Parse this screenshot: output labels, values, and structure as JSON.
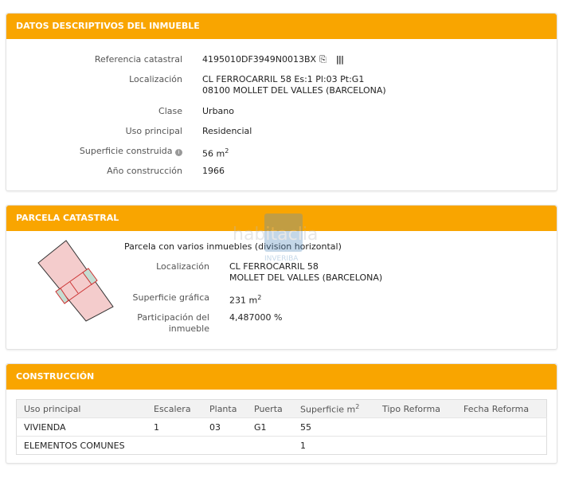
{
  "datos": {
    "title": "DATOS DESCRIPTIVOS DEL INMUEBLE",
    "rows": [
      {
        "label": "Referencia catastral",
        "value": "4195010DF3949N0013BX"
      },
      {
        "label": "Localización",
        "value": "CL FERROCARRIL 58 Es:1 Pl:03 Pt:G1",
        "value2": "08100 MOLLET DEL VALLES (BARCELONA)"
      },
      {
        "label": "Clase",
        "value": "Urbano"
      },
      {
        "label": "Uso principal",
        "value": "Residencial"
      },
      {
        "label": "Superficie construida",
        "value": "56 m",
        "unit_sup": "2"
      },
      {
        "label": "Año construcción",
        "value": "1966"
      }
    ]
  },
  "parcela": {
    "title": "PARCELA CATASTRAL",
    "subtitle": "Parcela con varios inmuebles (division horizontal)",
    "rows": [
      {
        "label": "Localización",
        "value": "CL FERROCARRIL 58",
        "value2": "MOLLET DEL VALLES (BARCELONA)"
      },
      {
        "label": "Superficie gráfica",
        "value": "231 m",
        "unit_sup": "2"
      },
      {
        "label": "Participación del",
        "label2": "inmueble",
        "value": "4,487000 %"
      }
    ]
  },
  "construccion": {
    "title": "CONSTRUCCIÓN",
    "headers": [
      "Uso principal",
      "Escalera",
      "Planta",
      "Puerta",
      "Superficie m",
      "Tipo Reforma",
      "Fecha Reforma"
    ],
    "header_sup": "2",
    "rows": [
      [
        "VIVIENDA",
        "1",
        "03",
        "G1",
        "55",
        "",
        ""
      ],
      [
        "ELEMENTOS COMUNES",
        "",
        "",
        "",
        "1",
        "",
        ""
      ]
    ]
  },
  "watermark": {
    "brand": "habitaclia",
    "agency": "INVERIBA"
  },
  "colors": {
    "header": "#f9a500"
  }
}
